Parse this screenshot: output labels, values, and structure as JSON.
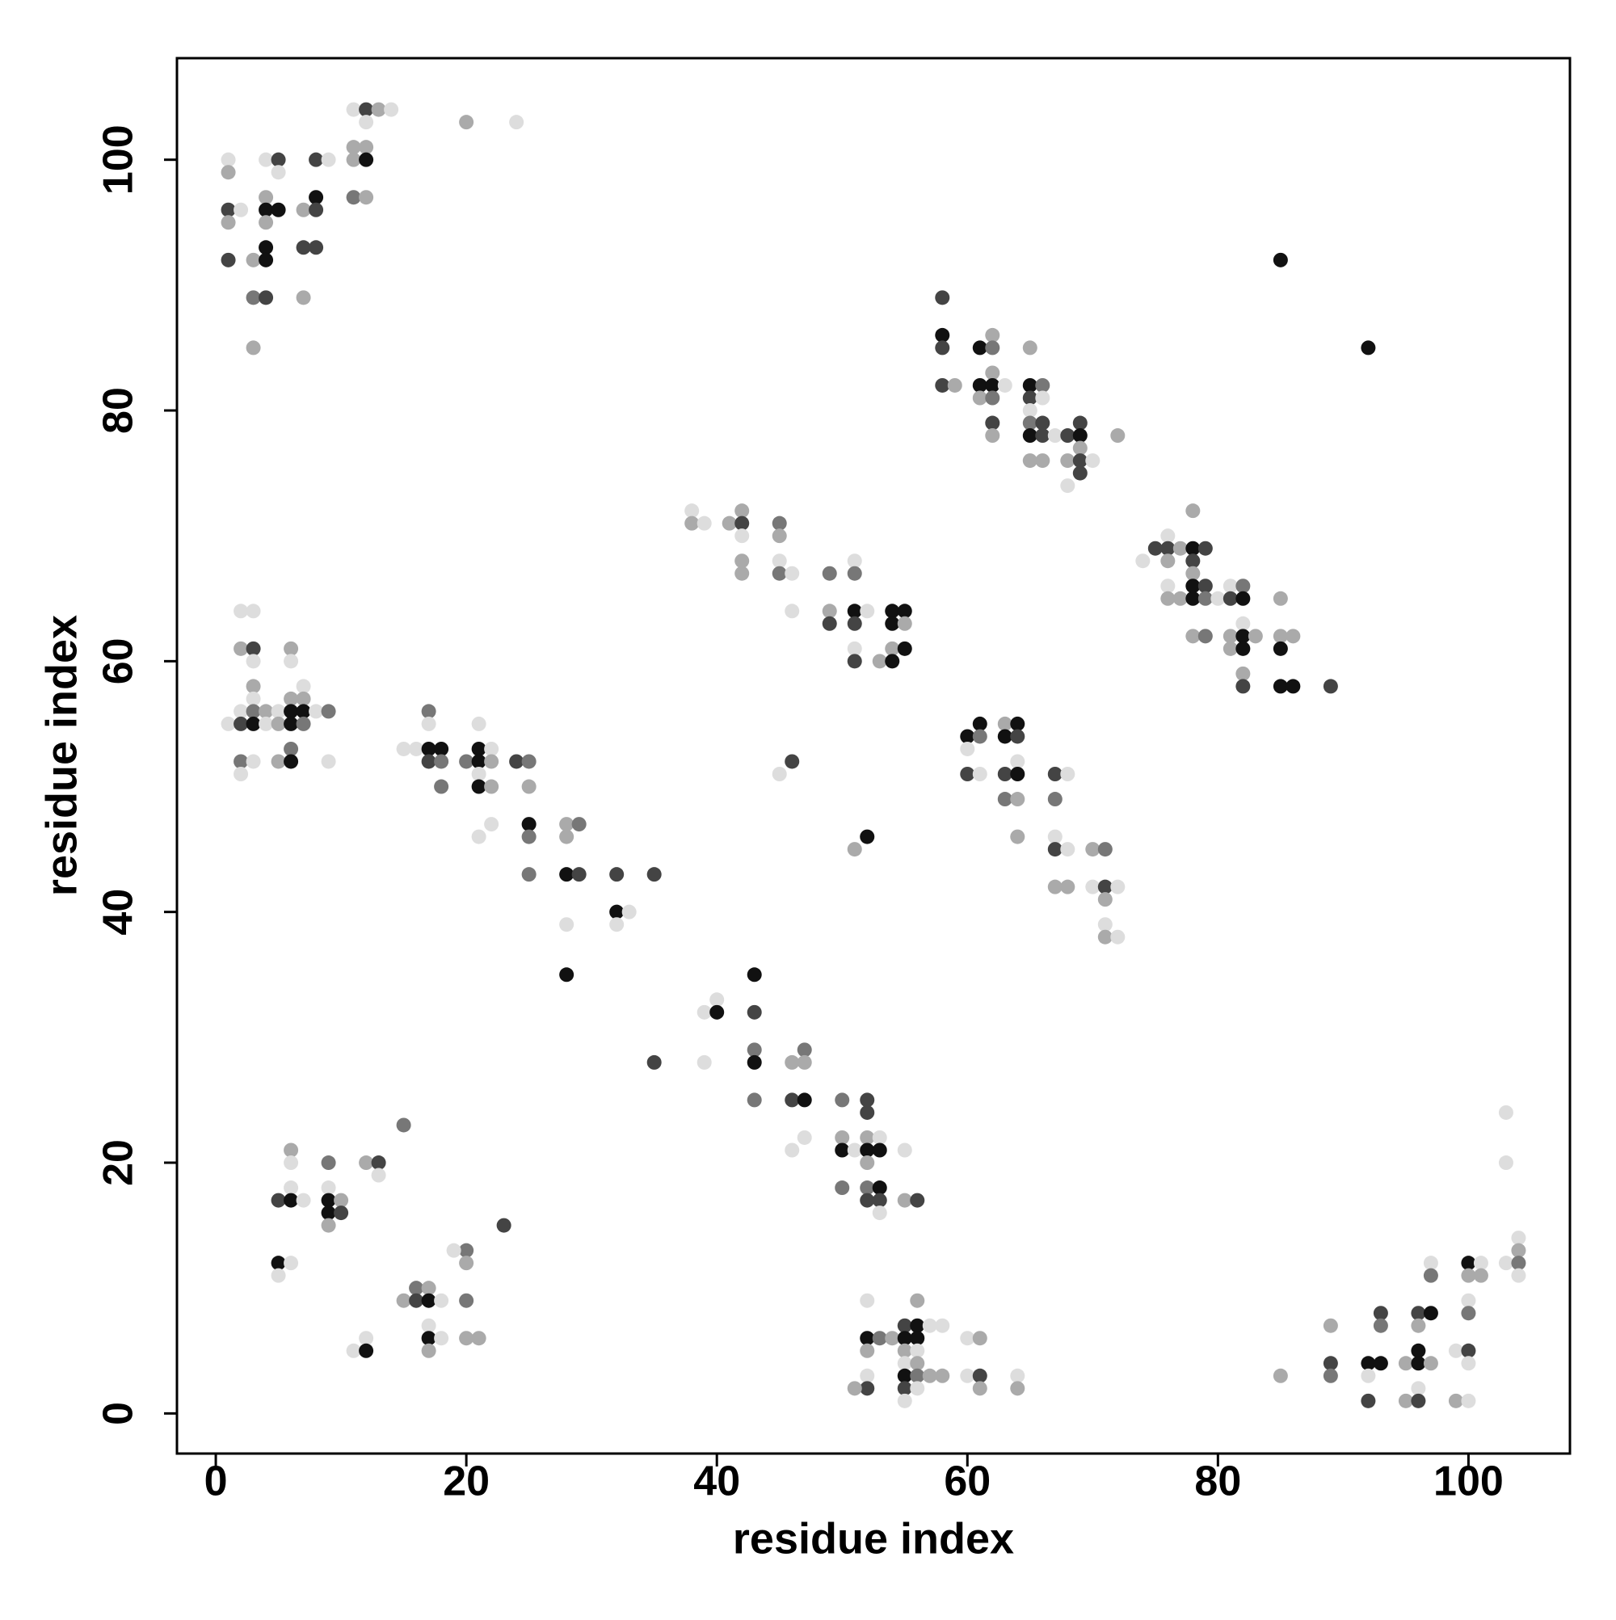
{
  "chart_data": {
    "type": "scatter",
    "xlabel": "residue index",
    "ylabel": "residue index",
    "xlim": [
      -3.1,
      108.1
    ],
    "ylim": [
      -3.2,
      108.1
    ],
    "xticks": [
      0,
      20,
      40,
      60,
      80,
      100
    ],
    "yticks": [
      0,
      20,
      40,
      60,
      80,
      100
    ],
    "grid": false,
    "x": [
      1,
      1,
      1,
      1,
      1,
      2,
      3,
      3,
      3,
      4,
      4,
      4,
      4,
      4,
      4,
      4,
      5,
      5,
      5,
      7,
      7,
      7,
      8,
      8,
      8,
      8,
      9,
      11,
      11,
      11,
      11,
      12,
      12,
      12,
      12,
      12,
      13,
      14,
      20,
      24,
      58,
      58,
      58,
      58,
      59,
      61,
      61,
      61,
      62,
      62,
      62,
      62,
      62,
      62,
      62,
      63,
      65,
      65,
      65,
      65,
      65,
      65,
      65,
      66,
      66,
      66,
      66,
      66,
      67,
      68,
      68,
      68,
      69,
      69,
      69,
      69,
      69,
      70,
      72,
      85,
      92,
      74,
      75,
      76,
      76,
      76,
      76,
      76,
      77,
      77,
      78,
      78,
      78,
      78,
      78,
      78,
      78,
      79,
      79,
      79,
      79,
      80,
      81,
      81,
      81,
      81,
      82,
      82,
      82,
      82,
      82,
      82,
      82,
      83,
      85,
      85,
      85,
      85,
      86,
      86,
      89,
      38,
      38,
      39,
      41,
      42,
      42,
      42,
      42,
      42,
      45,
      45,
      45,
      45,
      46,
      46,
      49,
      49,
      49,
      51,
      51,
      51,
      51,
      51,
      51,
      52,
      53,
      54,
      54,
      54,
      54,
      55,
      55,
      55,
      60,
      60,
      60,
      61,
      61,
      61,
      63,
      63,
      63,
      63,
      64,
      64,
      64,
      64,
      64,
      64,
      67,
      67,
      67,
      67,
      67,
      68,
      68,
      68,
      70,
      70,
      71,
      71,
      71,
      71,
      71,
      72,
      72,
      45,
      46,
      51,
      52,
      1,
      2,
      2,
      2,
      2,
      2,
      2,
      3,
      3,
      3,
      3,
      3,
      3,
      3,
      3,
      4,
      4,
      5,
      5,
      5,
      6,
      6,
      6,
      6,
      6,
      6,
      6,
      7,
      7,
      7,
      7,
      8,
      9,
      9,
      15,
      16,
      17,
      17,
      17,
      17,
      18,
      18,
      18,
      20,
      21,
      21,
      21,
      21,
      21,
      21,
      22,
      22,
      22,
      22,
      24,
      25,
      25,
      25,
      25,
      25,
      28,
      28,
      28,
      28,
      28,
      29,
      29,
      32,
      32,
      32,
      33,
      35,
      35,
      39,
      39,
      40,
      40,
      43,
      43,
      43,
      43,
      43,
      46,
      46,
      46,
      47,
      47,
      47,
      47,
      50,
      50,
      50,
      50,
      51,
      52,
      52,
      52,
      52,
      52,
      52,
      52,
      53,
      53,
      53,
      53,
      53,
      55,
      55,
      56,
      15,
      6,
      6,
      6,
      5,
      6,
      7,
      9,
      9,
      9,
      9,
      9,
      10,
      10,
      12,
      13,
      13,
      23,
      5,
      5,
      6,
      20,
      19,
      20,
      15,
      16,
      16,
      17,
      17,
      18,
      20,
      17,
      17,
      17,
      18,
      20,
      21,
      11,
      12,
      12,
      52,
      52,
      52,
      52,
      52,
      51,
      53,
      54,
      55,
      55,
      55,
      55,
      55,
      55,
      55,
      56,
      56,
      56,
      56,
      56,
      56,
      56,
      57,
      58,
      57,
      58,
      60,
      60,
      61,
      61,
      61,
      64,
      64,
      85,
      89,
      89,
      89,
      92,
      92,
      92,
      93,
      93,
      93,
      95,
      95,
      96,
      96,
      96,
      96,
      96,
      96,
      97,
      97,
      97,
      97,
      99,
      99,
      100,
      100,
      100,
      100,
      100,
      100,
      100,
      101,
      101,
      103,
      103,
      103,
      104,
      104,
      104,
      104
    ],
    "values": [
      100,
      99,
      96,
      95,
      92,
      96,
      92,
      89,
      85,
      100,
      97,
      96,
      95,
      93,
      92,
      89,
      100,
      99,
      96,
      96,
      93,
      89,
      100,
      97,
      96,
      93,
      100,
      104,
      101,
      100,
      97,
      104,
      103,
      101,
      100,
      97,
      104,
      104,
      103,
      103,
      89,
      86,
      85,
      82,
      82,
      85,
      82,
      81,
      86,
      85,
      83,
      82,
      81,
      79,
      78,
      82,
      85,
      82,
      81,
      80,
      79,
      78,
      76,
      82,
      81,
      79,
      78,
      76,
      78,
      78,
      76,
      74,
      79,
      78,
      77,
      76,
      75,
      76,
      78,
      92,
      85,
      68,
      69,
      70,
      69,
      68,
      66,
      65,
      69,
      65,
      72,
      69,
      68,
      67,
      66,
      65,
      62,
      69,
      66,
      65,
      62,
      65,
      66,
      65,
      62,
      61,
      66,
      65,
      63,
      62,
      61,
      59,
      58,
      62,
      65,
      62,
      61,
      58,
      62,
      58,
      58,
      72,
      71,
      71,
      71,
      72,
      71,
      70,
      68,
      67,
      71,
      70,
      68,
      67,
      67,
      64,
      67,
      64,
      63,
      68,
      67,
      64,
      63,
      61,
      60,
      64,
      60,
      64,
      63,
      61,
      60,
      64,
      63,
      61,
      54,
      53,
      51,
      55,
      54,
      51,
      55,
      54,
      51,
      49,
      55,
      54,
      52,
      51,
      49,
      46,
      51,
      49,
      46,
      45,
      42,
      51,
      45,
      42,
      45,
      42,
      45,
      42,
      41,
      39,
      38,
      42,
      38,
      51,
      52,
      45,
      46,
      55,
      64,
      61,
      56,
      55,
      52,
      51,
      64,
      61,
      60,
      58,
      57,
      56,
      55,
      52,
      56,
      55,
      56,
      55,
      52,
      61,
      60,
      57,
      56,
      55,
      53,
      52,
      58,
      57,
      56,
      55,
      56,
      56,
      52,
      53,
      53,
      56,
      55,
      53,
      52,
      53,
      52,
      50,
      52,
      55,
      53,
      52,
      51,
      50,
      46,
      53,
      52,
      50,
      47,
      52,
      52,
      50,
      47,
      46,
      43,
      47,
      46,
      43,
      39,
      35,
      47,
      43,
      43,
      40,
      39,
      40,
      43,
      28,
      32,
      28,
      33,
      32,
      35,
      32,
      29,
      28,
      25,
      28,
      25,
      21,
      29,
      28,
      25,
      22,
      25,
      22,
      21,
      18,
      21,
      25,
      24,
      22,
      21,
      20,
      18,
      17,
      22,
      21,
      18,
      17,
      16,
      21,
      17,
      17,
      23,
      21,
      20,
      18,
      17,
      17,
      17,
      20,
      18,
      17,
      16,
      15,
      17,
      16,
      20,
      20,
      19,
      15,
      12,
      11,
      12,
      13,
      13,
      12,
      9,
      10,
      9,
      10,
      9,
      9,
      9,
      7,
      6,
      5,
      6,
      6,
      6,
      5,
      6,
      5,
      9,
      6,
      5,
      3,
      2,
      2,
      6,
      6,
      7,
      6,
      5,
      4,
      3,
      2,
      1,
      9,
      7,
      6,
      5,
      4,
      3,
      2,
      7,
      7,
      3,
      3,
      6,
      3,
      6,
      3,
      2,
      3,
      2,
      3,
      7,
      4,
      3,
      4,
      3,
      1,
      8,
      7,
      4,
      4,
      1,
      8,
      7,
      5,
      4,
      2,
      1,
      12,
      11,
      8,
      4,
      5,
      1,
      12,
      11,
      9,
      8,
      5,
      4,
      1,
      12,
      11,
      24,
      20,
      12,
      14,
      13,
      12,
      11
    ],
    "colors": [
      "#ddd",
      "#aaa",
      "#444",
      "#aaa",
      "#444",
      "#ddd",
      "#aaa",
      "#777",
      "#aaa",
      "#ddd",
      "#aaa",
      "#111",
      "#aaa",
      "#111",
      "#111",
      "#444",
      "#444",
      "#ddd",
      "#111",
      "#aaa",
      "#444",
      "#aaa",
      "#444",
      "#111",
      "#444",
      "#444",
      "#ddd",
      "#ddd",
      "#aaa",
      "#aaa",
      "#777",
      "#444",
      "#ddd",
      "#aaa",
      "#111",
      "#aaa",
      "#aaa",
      "#ddd",
      "#aaa",
      "#ddd",
      "#444",
      "#111",
      "#444",
      "#444",
      "#aaa",
      "#111",
      "#111",
      "#aaa",
      "#aaa",
      "#777",
      "#aaa",
      "#111",
      "#777",
      "#444",
      "#aaa",
      "#ddd",
      "#aaa",
      "#111",
      "#444",
      "#ddd",
      "#777",
      "#111",
      "#aaa",
      "#777",
      "#ddd",
      "#444",
      "#444",
      "#aaa",
      "#ddd",
      "#444",
      "#aaa",
      "#ddd",
      "#444",
      "#111",
      "#aaa",
      "#444",
      "#444",
      "#ddd",
      "#aaa",
      "#111",
      "#111",
      "#ddd",
      "#444",
      "#ddd",
      "#444",
      "#aaa",
      "#ddd",
      "#aaa",
      "#aaa",
      "#aaa",
      "#aaa",
      "#111",
      "#444",
      "#aaa",
      "#111",
      "#111",
      "#aaa",
      "#444",
      "#444",
      "#777",
      "#777",
      "#ddd",
      "#ddd",
      "#444",
      "#aaa",
      "#aaa",
      "#777",
      "#111",
      "#ddd",
      "#111",
      "#111",
      "#aaa",
      "#444",
      "#aaa",
      "#aaa",
      "#aaa",
      "#111",
      "#111",
      "#aaa",
      "#111",
      "#444",
      "#ddd",
      "#aaa",
      "#ddd",
      "#aaa",
      "#aaa",
      "#444",
      "#ddd",
      "#aaa",
      "#aaa",
      "#777",
      "#aaa",
      "#ddd",
      "#777",
      "#ddd",
      "#ddd",
      "#777",
      "#aaa",
      "#444",
      "#ddd",
      "#777",
      "#111",
      "#444",
      "#ddd",
      "#444",
      "#ddd",
      "#aaa",
      "#111",
      "#111",
      "#aaa",
      "#111",
      "#111",
      "#aaa",
      "#111",
      "#111",
      "#ddd",
      "#444",
      "#111",
      "#777",
      "#ddd",
      "#aaa",
      "#111",
      "#444",
      "#777",
      "#111",
      "#444",
      "#ddd",
      "#111",
      "#aaa",
      "#aaa",
      "#444",
      "#777",
      "#ddd",
      "#444",
      "#aaa",
      "#ddd",
      "#ddd",
      "#aaa",
      "#aaa",
      "#ddd",
      "#777",
      "#444",
      "#aaa",
      "#ddd",
      "#aaa",
      "#ddd",
      "#ddd",
      "#ddd",
      "#444",
      "#aaa",
      "#111",
      "#ddd",
      "#ddd",
      "#aaa",
      "#ddd",
      "#444",
      "#777",
      "#ddd",
      "#ddd",
      "#444",
      "#ddd",
      "#aaa",
      "#ddd",
      "#777",
      "#111",
      "#ddd",
      "#aaa",
      "#ddd",
      "#ddd",
      "#aaa",
      "#aaa",
      "#aaa",
      "#ddd",
      "#aaa",
      "#111",
      "#111",
      "#777",
      "#111",
      "#ddd",
      "#aaa",
      "#111",
      "#777",
      "#ddd",
      "#777",
      "#ddd",
      "#ddd",
      "#ddd",
      "#777",
      "#ddd",
      "#111",
      "#444",
      "#111",
      "#777",
      "#777",
      "#777",
      "#ddd",
      "#111",
      "#111",
      "#ddd",
      "#111",
      "#ddd",
      "#ddd",
      "#aaa",
      "#aaa",
      "#ddd",
      "#444",
      "#777",
      "#aaa",
      "#111",
      "#777",
      "#777",
      "#aaa",
      "#aaa",
      "#111",
      "#ddd",
      "#111",
      "#777",
      "#444",
      "#444",
      "#111",
      "#ddd",
      "#ddd",
      "#444",
      "#444",
      "#ddd",
      "#ddd",
      "#ddd",
      "#111",
      "#111",
      "#444",
      "#777",
      "#111",
      "#777",
      "#aaa",
      "#444",
      "#ddd",
      "#777",
      "#aaa",
      "#111",
      "#ddd",
      "#777",
      "#aaa",
      "#111",
      "#777",
      "#ddd",
      "#444",
      "#444",
      "#aaa",
      "#111",
      "#aaa",
      "#777",
      "#444",
      "#ddd",
      "#111",
      "#111",
      "#444",
      "#ddd",
      "#ddd",
      "#aaa",
      "#444",
      "#777",
      "#aaa",
      "#ddd",
      "#ddd",
      "#444",
      "#111",
      "#ddd",
      "#777",
      "#ddd",
      "#111",
      "#111",
      "#aaa",
      "#aaa",
      "#444",
      "#aaa",
      "#444",
      "#ddd",
      "#444",
      "#111",
      "#ddd",
      "#ddd",
      "#777",
      "#ddd",
      "#aaa",
      "#aaa",
      "#777",
      "#444",
      "#aaa",
      "#111",
      "#ddd",
      "#777",
      "#ddd",
      "#111",
      "#aaa",
      "#ddd",
      "#aaa",
      "#aaa",
      "#ddd",
      "#ddd",
      "#111",
      "#ddd",
      "#111",
      "#aaa",
      "#ddd",
      "#444",
      "#aaa",
      "#777",
      "#aaa",
      "#444",
      "#111",
      "#aaa",
      "#ddd",
      "#111",
      "#444",
      "#ddd",
      "#aaa",
      "#111",
      "#111",
      "#ddd",
      "#aaa",
      "#777",
      "#ddd",
      "#ddd",
      "#ddd",
      "#aaa",
      "#aaa",
      "#ddd",
      "#ddd",
      "#aaa",
      "#444",
      "#aaa",
      "#ddd",
      "#aaa",
      "#aaa",
      "#aaa",
      "#444",
      "#777",
      "#111",
      "#ddd",
      "#444",
      "#444",
      "#777",
      "#111",
      "#aaa",
      "#aaa",
      "#444",
      "#aaa",
      "#111",
      "#111",
      "#ddd",
      "#444",
      "#ddd",
      "#777",
      "#111",
      "#aaa",
      "#ddd",
      "#aaa",
      "#111",
      "#aaa",
      "#ddd",
      "#777",
      "#444",
      "#ddd",
      "#ddd",
      "#ddd",
      "#aaa",
      "#ddd",
      "#ddd",
      "#ddd",
      "#ddd",
      "#aaa",
      "#777",
      "#ddd"
    ]
  }
}
